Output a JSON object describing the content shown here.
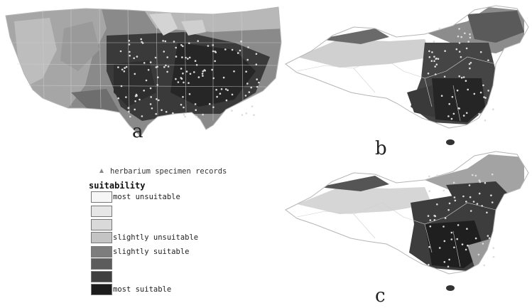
{
  "panels": {
    "a": {
      "label": "a"
    },
    "b": {
      "label": "b"
    },
    "c": {
      "label": "c"
    }
  },
  "legend": {
    "record_label": "herbarium specimen records",
    "title": "suitability",
    "classes": [
      {
        "label": "most unsuitable",
        "color": "#f6f6f6"
      },
      {
        "label": "",
        "color": "#e6e6e6"
      },
      {
        "label": "",
        "color": "#d9d9d9"
      },
      {
        "label": "slightly unsuitable",
        "color": "#c4c4c4"
      },
      {
        "label": "slightly suitable",
        "color": "#7d7d7d"
      },
      {
        "label": "",
        "color": "#5c5c5c"
      },
      {
        "label": "",
        "color": "#404040"
      },
      {
        "label": "most suitable",
        "color": "#1c1c1c"
      }
    ]
  },
  "colors": {
    "record_marker": "#dcdcdc",
    "border_line": "#cfcfcf",
    "outline": "#b5b5b5"
  }
}
